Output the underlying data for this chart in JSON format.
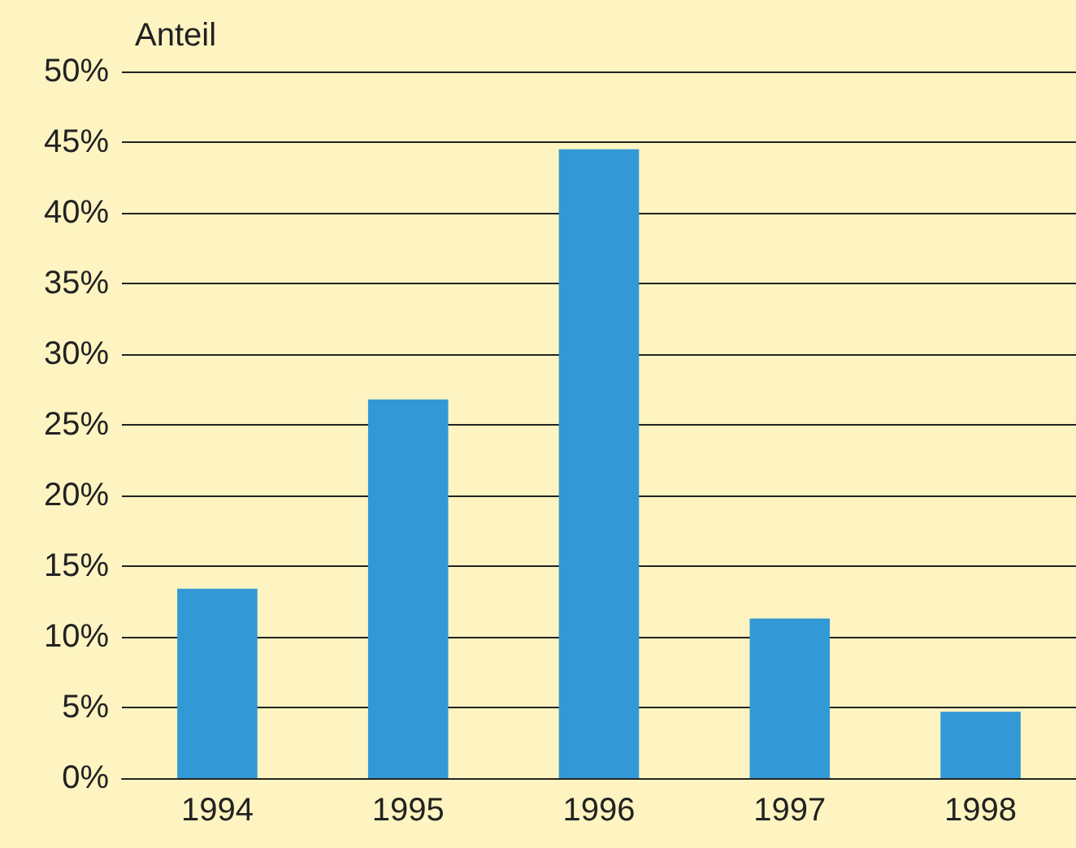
{
  "chart_data": {
    "type": "bar",
    "ylabel": "Anteil",
    "categories": [
      "1994",
      "1995",
      "1996",
      "1997",
      "1998"
    ],
    "values": [
      13.4,
      26.8,
      44.5,
      11.3,
      4.7
    ],
    "color": "#3399d6",
    "ylim": [
      0,
      50
    ],
    "yticks": [
      {
        "value": 0,
        "label": "0%"
      },
      {
        "value": 5,
        "label": "5%"
      },
      {
        "value": 10,
        "label": "10%"
      },
      {
        "value": 15,
        "label": "15%"
      },
      {
        "value": 20,
        "label": "20%"
      },
      {
        "value": 25,
        "label": "25%"
      },
      {
        "value": 30,
        "label": "30%"
      },
      {
        "value": 35,
        "label": "35%"
      },
      {
        "value": 40,
        "label": "40%"
      },
      {
        "value": 45,
        "label": "45%"
      },
      {
        "value": 50,
        "label": "50%"
      }
    ],
    "grid": "y"
  }
}
